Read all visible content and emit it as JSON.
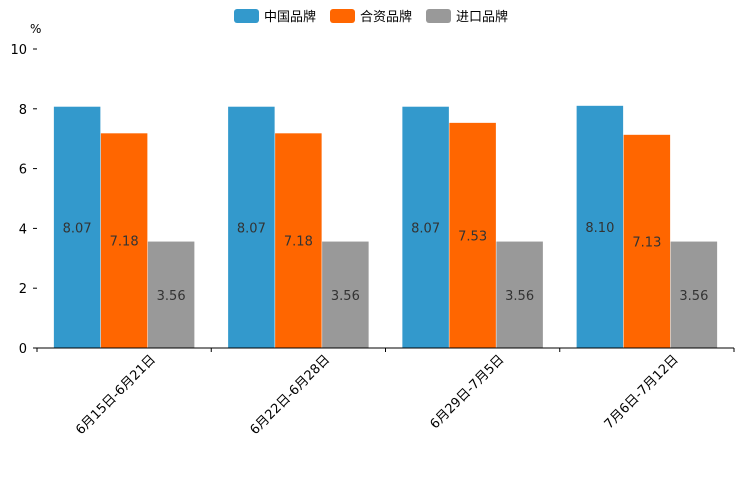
{
  "chart_data": {
    "type": "bar",
    "title": "",
    "xlabel": "",
    "ylabel": "%",
    "ylim": [
      0,
      10
    ],
    "yticks": [
      0,
      2,
      4,
      6,
      8,
      10
    ],
    "grid": false,
    "legend_position": "top-center",
    "categories": [
      "6月15日-6月21日",
      "6月22日-6月28日",
      "6月29日-7月5日",
      "7月6日-7月12日"
    ],
    "series": [
      {
        "name": "中国品牌",
        "color": "#3399cc",
        "values": [
          8.07,
          8.07,
          8.07,
          8.1
        ]
      },
      {
        "name": "合资品牌",
        "color": "#ff6600",
        "values": [
          7.18,
          7.18,
          7.53,
          7.13
        ]
      },
      {
        "name": "进口品牌",
        "color": "#999999",
        "values": [
          3.56,
          3.56,
          3.56,
          3.56
        ]
      }
    ]
  }
}
